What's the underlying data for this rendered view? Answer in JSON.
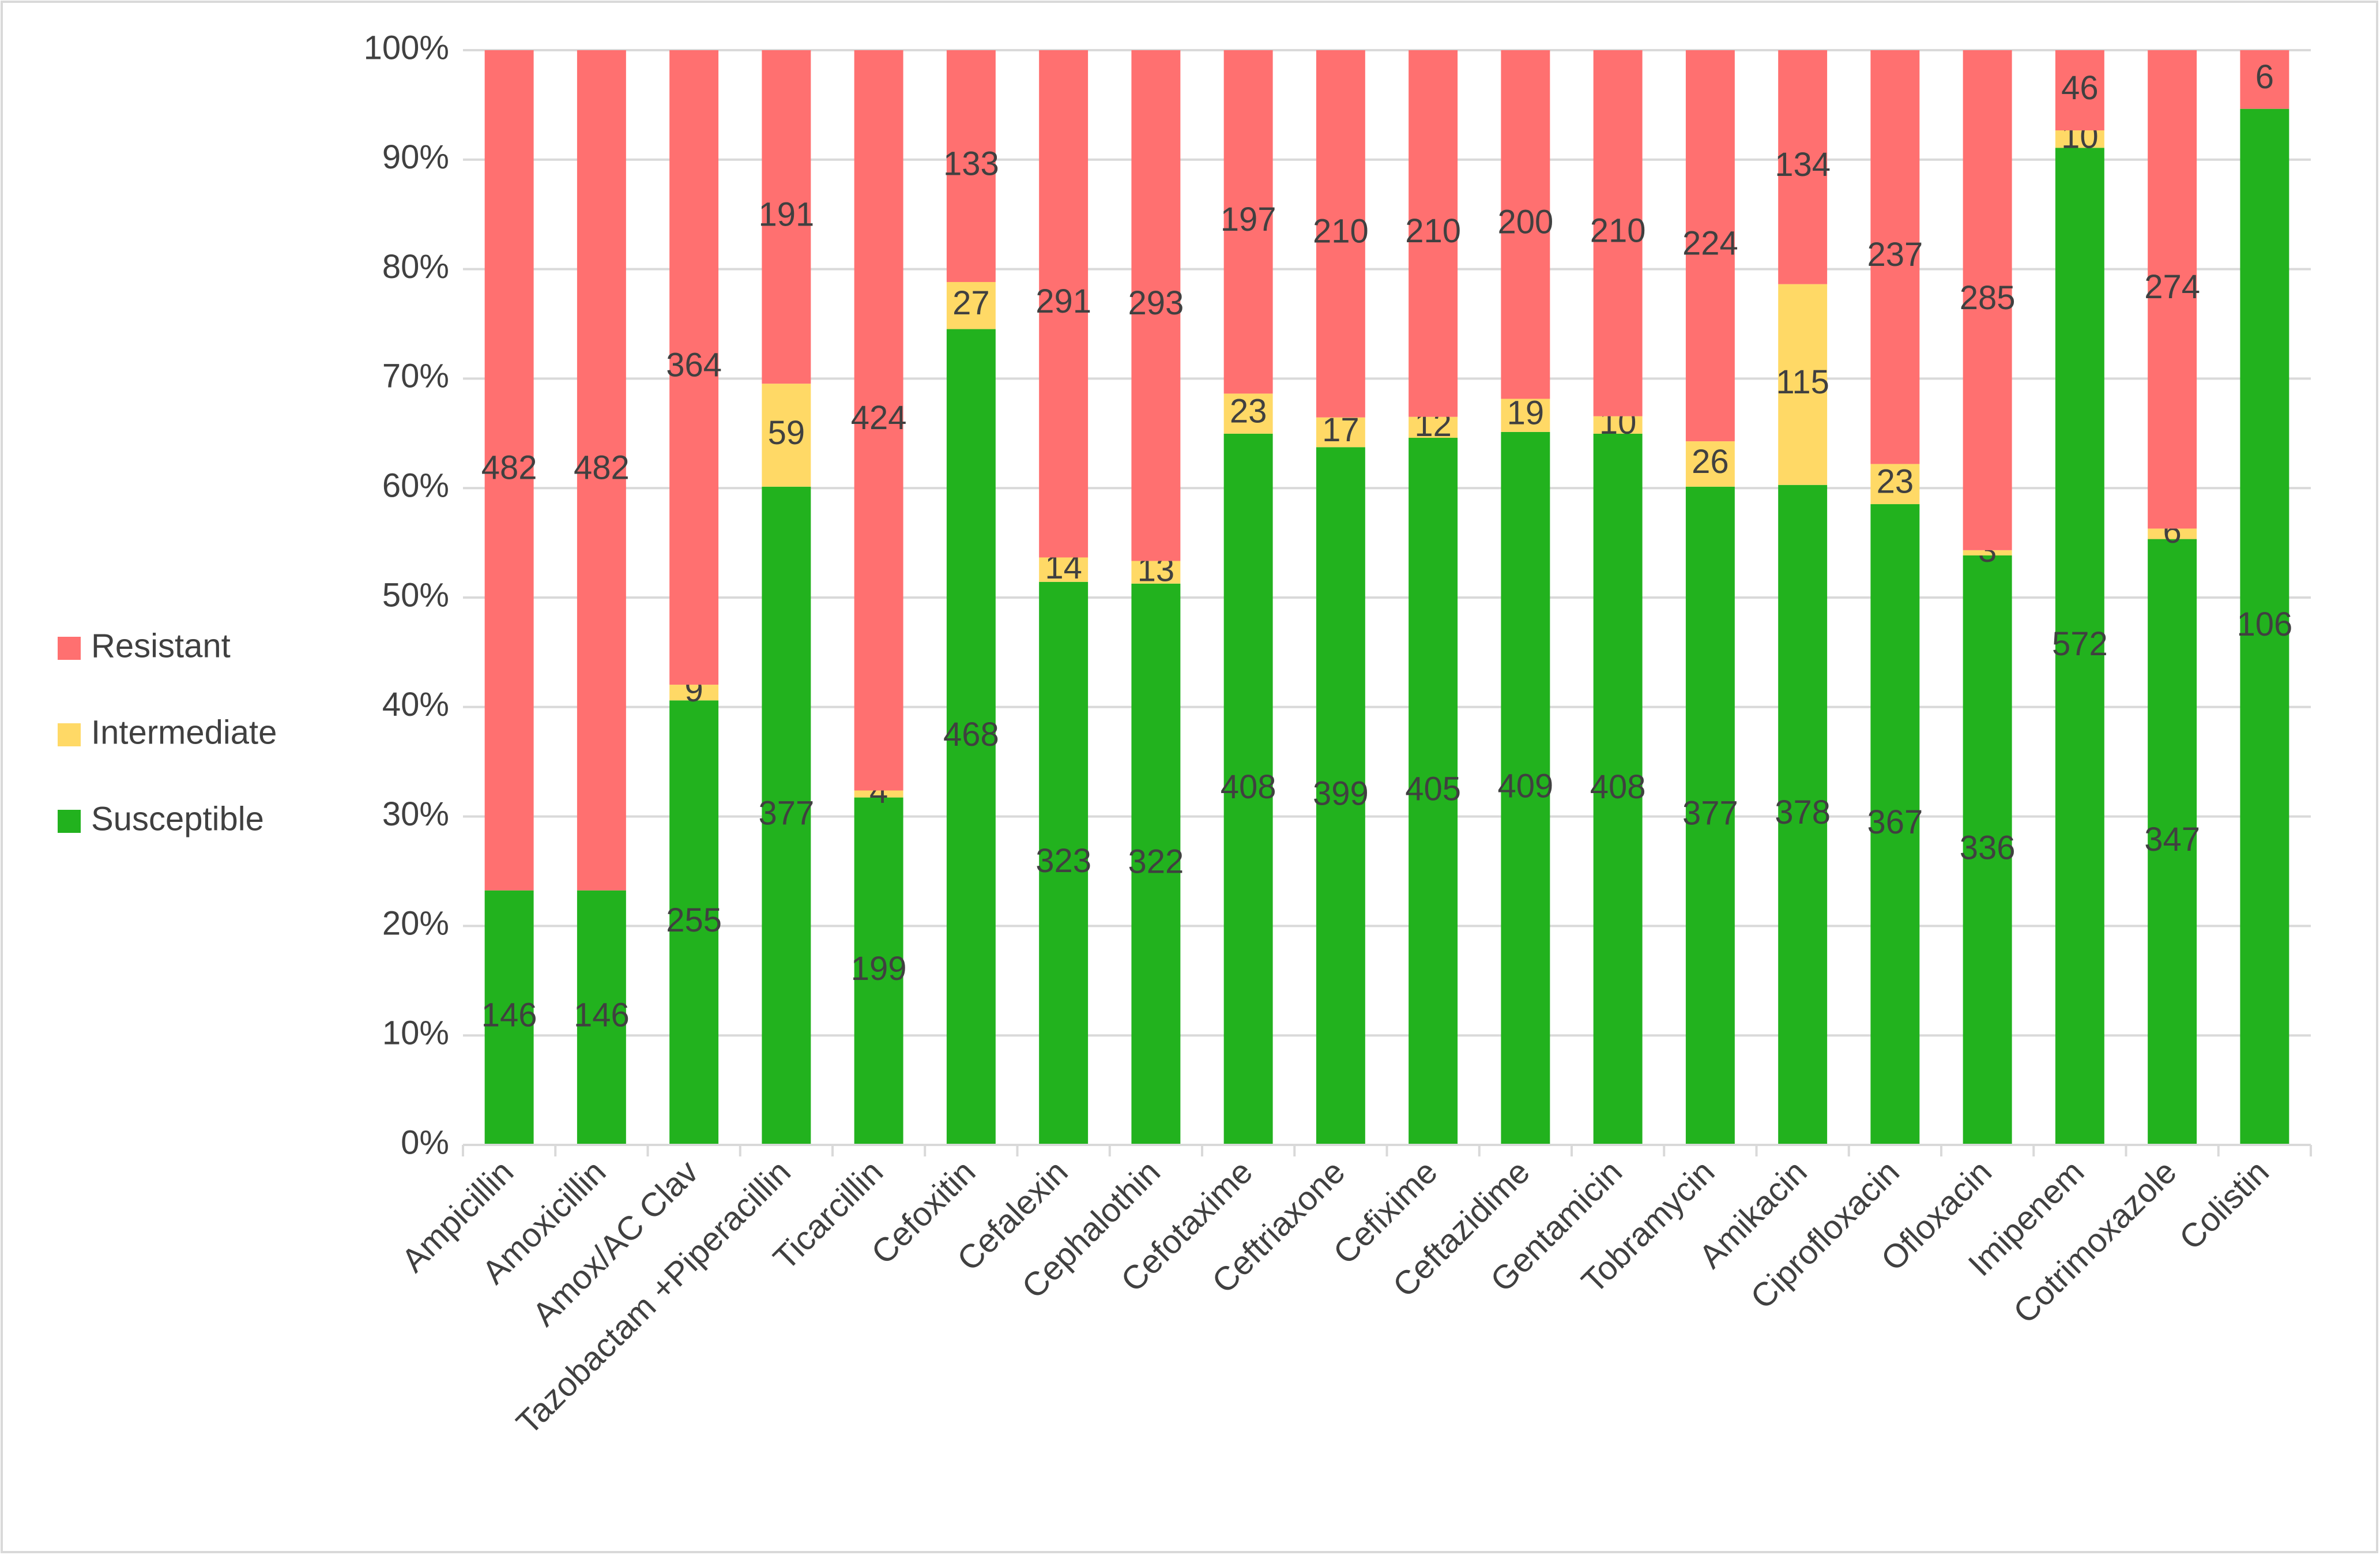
{
  "chart_data": {
    "type": "bar",
    "stacking": "percent",
    "categories": [
      "Ampicillin",
      "Amoxicillin",
      "Amox/AC Clav",
      "Tazobactam +Piperacillin",
      "Ticarcillin",
      "Cefoxitin",
      "Cefalexin",
      "Cephalothin",
      "Cefotaxime",
      "Ceftriaxone",
      "Cefixime",
      "Ceftazidime",
      "Gentamicin",
      "Tobramycin",
      "Amikacin",
      "Ciprofloxacin",
      "Ofloxacin",
      "Imipenem",
      "Cotrimoxazole",
      "Colistin"
    ],
    "series": [
      {
        "name": "Susceptible",
        "color": "#22b21e",
        "values": [
          146,
          146,
          255,
          377,
          199,
          468,
          323,
          322,
          408,
          399,
          405,
          409,
          408,
          377,
          378,
          367,
          336,
          572,
          347,
          106
        ]
      },
      {
        "name": "Intermediate",
        "color": "#ffd966",
        "values": [
          null,
          null,
          9,
          59,
          4,
          27,
          14,
          13,
          23,
          17,
          12,
          19,
          10,
          26,
          115,
          23,
          3,
          10,
          6,
          null
        ]
      },
      {
        "name": "Resistant",
        "color": "#ff7070",
        "values": [
          482,
          482,
          364,
          191,
          424,
          133,
          291,
          293,
          197,
          210,
          210,
          200,
          210,
          224,
          134,
          237,
          285,
          46,
          274,
          6
        ]
      }
    ],
    "ylim": [
      0,
      100
    ],
    "yticks": [
      {
        "value": 0,
        "label": "0%"
      },
      {
        "value": 10,
        "label": "10%"
      },
      {
        "value": 20,
        "label": "20%"
      },
      {
        "value": 30,
        "label": "30%"
      },
      {
        "value": 40,
        "label": "40%"
      },
      {
        "value": 50,
        "label": "50%"
      },
      {
        "value": 60,
        "label": "60%"
      },
      {
        "value": 70,
        "label": "70%"
      },
      {
        "value": 80,
        "label": "80%"
      },
      {
        "value": 90,
        "label": "90%"
      },
      {
        "value": 100,
        "label": "100%"
      }
    ],
    "grid": true,
    "legend": "left"
  }
}
